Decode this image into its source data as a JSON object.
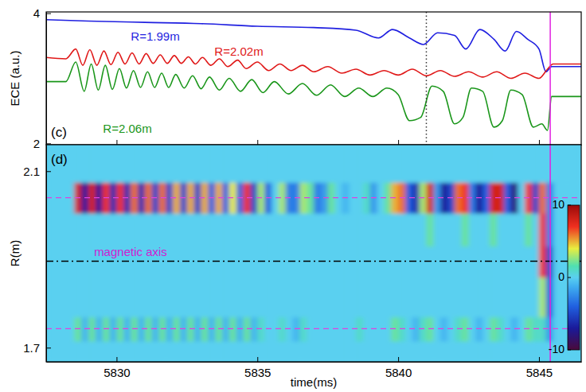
{
  "chart_data": [
    {
      "type": "line",
      "panel_label": "(c)",
      "ylabel": "ECE (a.u.)",
      "xlim": [
        5827.5,
        5846.5
      ],
      "xticks": [
        5830,
        5835,
        5840,
        5845
      ],
      "ylim": [
        1.98,
        4.02
      ],
      "yticks": [
        2,
        4
      ],
      "tick_labels": "y",
      "series": [
        {
          "name": "R=1.99m",
          "color": "#1f1fe0",
          "x": [
            5827.5,
            5829,
            5831,
            5833,
            5835,
            5837,
            5838.5,
            5839.3,
            5839.8,
            5840.4,
            5840.9,
            5841.4,
            5842,
            5842.4,
            5842.9,
            5843.4,
            5843.8,
            5844.2,
            5844.6,
            5845,
            5845.25,
            5845.45,
            5846.5
          ],
          "values": [
            3.9,
            3.88,
            3.86,
            3.84,
            3.8,
            3.78,
            3.74,
            3.62,
            3.75,
            3.62,
            3.52,
            3.7,
            3.66,
            3.45,
            3.75,
            3.6,
            3.42,
            3.72,
            3.6,
            3.45,
            3.1,
            3.18,
            3.18
          ]
        },
        {
          "name": "R=2.02m",
          "color": "#e01818",
          "x": [
            5827.5,
            5828.2,
            5828.55,
            5828.8,
            5829.05,
            5829.3,
            5829.55,
            5829.8,
            5830.05,
            5830.3,
            5830.55,
            5830.8,
            5831.05,
            5831.3,
            5831.55,
            5831.8,
            5832.05,
            5832.3,
            5832.55,
            5832.8,
            5833.05,
            5833.35,
            5833.65,
            5833.95,
            5834.3,
            5834.6,
            5835,
            5835.4,
            5835.8,
            5836.2,
            5836.6,
            5837,
            5837.5,
            5838,
            5838.5,
            5839,
            5839.5,
            5840,
            5840.5,
            5841,
            5841.5,
            5842,
            5842.5,
            5843,
            5843.5,
            5844,
            5844.5,
            5845,
            5845.3,
            5845.5,
            5846.5
          ],
          "values": [
            3.32,
            3.3,
            3.45,
            3.2,
            3.44,
            3.2,
            3.42,
            3.21,
            3.4,
            3.22,
            3.39,
            3.22,
            3.38,
            3.23,
            3.36,
            3.23,
            3.35,
            3.23,
            3.33,
            3.22,
            3.32,
            3.2,
            3.3,
            3.18,
            3.28,
            3.15,
            3.25,
            3.12,
            3.22,
            3.12,
            3.2,
            3.1,
            3.18,
            3.08,
            3.14,
            3.05,
            3.12,
            3.05,
            3.14,
            3.04,
            3.12,
            3.03,
            3.1,
            3.02,
            3.1,
            3.0,
            3.08,
            3.0,
            3.14,
            3.22,
            3.22
          ]
        },
        {
          "name": "R=2.06m",
          "color": "#1a961a",
          "x": [
            5827.5,
            5828.2,
            5828.55,
            5828.85,
            5829.1,
            5829.35,
            5829.6,
            5829.85,
            5830.1,
            5830.35,
            5830.6,
            5830.85,
            5831.1,
            5831.35,
            5831.6,
            5831.85,
            5832.1,
            5832.4,
            5832.7,
            5833,
            5833.3,
            5833.65,
            5834,
            5834.4,
            5834.8,
            5835.2,
            5835.6,
            5836.1,
            5836.6,
            5837.1,
            5837.6,
            5838.1,
            5838.6,
            5839.1,
            5839.6,
            5840,
            5840.4,
            5840.8,
            5841.2,
            5841.6,
            5842,
            5842.3,
            5842.6,
            5843,
            5843.4,
            5843.7,
            5844,
            5844.4,
            5844.8,
            5845.1,
            5845.3,
            5845.45,
            5846.5
          ],
          "values": [
            2.95,
            2.95,
            3.25,
            2.8,
            3.22,
            2.82,
            3.2,
            2.83,
            3.15,
            2.85,
            3.12,
            2.86,
            3.1,
            2.86,
            3.08,
            2.86,
            3.06,
            2.85,
            3.04,
            2.84,
            3.02,
            2.82,
            3.0,
            2.8,
            2.98,
            2.78,
            2.95,
            2.76,
            2.92,
            2.74,
            2.9,
            2.72,
            2.85,
            2.72,
            2.85,
            2.75,
            2.35,
            2.4,
            2.88,
            2.8,
            2.3,
            2.4,
            2.85,
            2.8,
            2.25,
            2.35,
            2.82,
            2.75,
            2.25,
            2.3,
            2.2,
            2.72,
            2.72
          ]
        }
      ],
      "vlines": [
        {
          "x": 5841.0,
          "color": "#333333",
          "line_style": "dotted"
        },
        {
          "x": 5845.4,
          "color": "#e020e0",
          "line_style": "solid"
        }
      ]
    },
    {
      "type": "heatmap",
      "panel_label": "(d)",
      "xlabel": "time(ms)",
      "ylabel": "R(m)",
      "xlim": [
        5827.5,
        5846.5
      ],
      "xticks": [
        5830,
        5835,
        5840,
        5845
      ],
      "ylim": [
        1.668,
        2.16
      ],
      "yticks": [
        1.7,
        2.1
      ],
      "x_edges": [
        5827.5,
        5827.75,
        5828,
        5828.25,
        5828.5,
        5828.75,
        5829,
        5829.25,
        5829.5,
        5829.75,
        5830,
        5830.25,
        5830.5,
        5830.75,
        5831,
        5831.25,
        5831.5,
        5831.75,
        5832,
        5832.25,
        5832.5,
        5832.75,
        5833,
        5833.25,
        5833.5,
        5833.75,
        5834,
        5834.25,
        5834.5,
        5834.75,
        5835,
        5835.25,
        5835.5,
        5835.75,
        5836,
        5836.25,
        5836.5,
        5836.75,
        5837,
        5837.25,
        5837.5,
        5837.75,
        5838,
        5838.25,
        5838.5,
        5838.75,
        5839,
        5839.25,
        5839.5,
        5839.75,
        5840,
        5840.25,
        5840.5,
        5840.75,
        5841,
        5841.25,
        5841.5,
        5841.75,
        5842,
        5842.25,
        5842.5,
        5842.75,
        5843,
        5843.25,
        5843.5,
        5843.75,
        5844,
        5844.25,
        5844.5,
        5844.75,
        5845,
        5845.25,
        5845.5,
        5845.75,
        5846,
        5846.25,
        5846.5
      ],
      "y_edges": [
        1.668,
        1.715,
        1.77,
        1.86,
        1.93,
        2.005,
        2.075,
        2.16
      ],
      "z": [
        [
          0,
          0,
          0,
          0,
          0,
          0,
          0,
          0,
          0,
          0,
          0,
          0,
          0,
          0,
          0,
          0,
          0,
          0,
          0,
          0,
          0,
          0,
          0,
          0,
          0,
          0,
          0,
          0,
          0,
          0,
          0,
          0,
          0,
          0,
          0,
          0,
          0,
          0,
          0,
          0,
          0,
          0,
          0,
          0,
          0,
          0,
          0,
          0,
          0,
          0,
          0,
          0,
          0,
          0,
          0,
          0,
          0,
          0,
          0,
          0,
          0,
          0,
          0,
          0,
          0,
          0,
          0,
          0,
          0,
          0,
          0,
          0,
          0,
          0,
          0,
          0
        ],
        [
          0,
          0,
          0,
          0,
          2,
          -1,
          2,
          -1,
          2,
          -1,
          2,
          -1,
          2,
          -1,
          2,
          -1,
          2,
          -1,
          2,
          -1,
          2,
          -1,
          2,
          -1,
          2,
          -1,
          2,
          -1,
          2,
          -1,
          1,
          0,
          0,
          1,
          0,
          -1,
          1,
          0,
          0,
          0,
          0,
          0,
          0,
          0,
          1,
          0,
          0,
          0,
          0,
          2,
          1,
          0,
          -1,
          1,
          2,
          0,
          -1,
          0,
          1,
          2,
          0,
          -1,
          0,
          2,
          1,
          0,
          -1,
          0,
          2,
          1,
          1,
          -2,
          0,
          0,
          0,
          0
        ],
        [
          0,
          0,
          0,
          0,
          0,
          0,
          0,
          0,
          0,
          0,
          0,
          0,
          0,
          0,
          0,
          0,
          0,
          0,
          0,
          0,
          0,
          0,
          0,
          0,
          0,
          0,
          0,
          0,
          0,
          0,
          0,
          0,
          0,
          0,
          0,
          0,
          0,
          0,
          0,
          0,
          0,
          0,
          0,
          0,
          0,
          0,
          0,
          0,
          0,
          0,
          0,
          0,
          0,
          0,
          0,
          0,
          0,
          0,
          0,
          0,
          0,
          0,
          0,
          0,
          0,
          0,
          0,
          0,
          0,
          0,
          3,
          -4,
          0,
          0,
          0,
          0
        ],
        [
          0,
          0,
          0,
          0,
          0,
          0,
          0,
          0,
          0,
          0,
          0,
          0,
          0,
          0,
          0,
          0,
          0,
          0,
          0,
          0,
          0,
          0,
          0,
          0,
          0,
          0,
          0,
          0,
          0,
          0,
          0,
          0,
          0,
          0,
          0,
          0,
          0,
          0,
          0,
          0,
          0,
          0,
          0,
          0,
          0,
          0,
          0,
          0,
          0,
          0,
          0,
          0,
          0,
          0,
          0,
          0,
          0,
          0,
          0,
          0,
          0,
          0,
          0,
          0,
          0,
          0,
          0,
          0,
          0,
          0,
          7,
          -5,
          0,
          0,
          0,
          0
        ],
        [
          0,
          0,
          0,
          0,
          0,
          0,
          0,
          0,
          0,
          0,
          0,
          0,
          0,
          0,
          0,
          0,
          0,
          0,
          0,
          0,
          0,
          0,
          0,
          0,
          0,
          0,
          0,
          0,
          0,
          0,
          0,
          0,
          0,
          0,
          0,
          0,
          0,
          0,
          0,
          0,
          0,
          0,
          0,
          0,
          0,
          0,
          0,
          0,
          0,
          0,
          0,
          0,
          0,
          0,
          2,
          0,
          0,
          0,
          0,
          2,
          0,
          0,
          0,
          2,
          0,
          0,
          0,
          0,
          2,
          0,
          7,
          -3,
          0,
          0,
          0,
          0
        ],
        [
          0,
          0,
          0,
          0,
          8,
          -7,
          8,
          -7,
          7,
          -6,
          7,
          -6,
          6,
          -6,
          6,
          -5,
          6,
          -5,
          5,
          -5,
          5,
          -5,
          5,
          -4,
          5,
          -4,
          4,
          -4,
          7,
          -5,
          3,
          -4,
          0,
          3,
          -3,
          -3,
          3,
          2,
          -3,
          -2,
          2,
          0,
          -1,
          0,
          0,
          1,
          -2,
          0,
          2,
          5,
          6,
          -4,
          -6,
          3,
          8,
          -2,
          -7,
          -5,
          6,
          7,
          -3,
          -7,
          -4,
          8,
          8,
          -4,
          -8,
          0,
          7,
          -5,
          6,
          -3,
          0,
          0,
          0,
          0
        ],
        [
          0,
          0,
          0,
          0,
          0,
          0,
          0,
          0,
          0,
          0,
          0,
          0,
          0,
          0,
          0,
          0,
          0,
          0,
          0,
          0,
          0,
          0,
          0,
          0,
          0,
          0,
          0,
          0,
          0,
          0,
          0,
          0,
          0,
          0,
          0,
          0,
          0,
          0,
          0,
          0,
          0,
          0,
          0,
          0,
          0,
          0,
          0,
          0,
          0,
          0,
          0,
          0,
          0,
          0,
          0,
          0,
          0,
          0,
          0,
          0,
          0,
          0,
          0,
          0,
          0,
          0,
          0,
          0,
          0,
          0,
          0,
          0,
          0,
          0,
          0,
          0
        ]
      ],
      "colorbar": {
        "range": [
          -10,
          10
        ],
        "ticks": [
          -10,
          0,
          10
        ]
      },
      "hlines": [
        {
          "y": 2.04,
          "color": "#e040e0",
          "line_style": "dashed"
        },
        {
          "y": 1.743,
          "color": "#e040e0",
          "line_style": "dashed"
        },
        {
          "y": 1.896,
          "color": "#000000",
          "line_style": "dashdot"
        }
      ],
      "vlines": [
        {
          "x": 5845.4,
          "color": "#e020e0",
          "line_style": "solid"
        }
      ],
      "annotations": [
        {
          "text": "magnetic axis",
          "color": "#d020d0",
          "x": 5829.2,
          "y": 1.915
        }
      ]
    }
  ]
}
